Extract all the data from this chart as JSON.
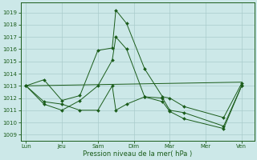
{
  "bg_color": "#cce8e8",
  "grid_color": "#aacccc",
  "line_color": "#1a5c1a",
  "marker_color": "#1a5c1a",
  "xlabel": "Pression niveau de la mer( hPa )",
  "ylim": [
    1008.5,
    1019.8
  ],
  "yticks": [
    1009,
    1010,
    1011,
    1012,
    1013,
    1014,
    1015,
    1016,
    1017,
    1018,
    1019
  ],
  "xtick_labels": [
    "Lun",
    "Jeu",
    "Sam",
    "Dim",
    "Mar",
    "Mer",
    "Ven"
  ],
  "xtick_positions": [
    0,
    1,
    2,
    3,
    4,
    5,
    6
  ],
  "series": [
    {
      "x": [
        0,
        0.5,
        1.0,
        1.5,
        2.0,
        2.4,
        2.5,
        2.8,
        3.3,
        3.8,
        4.0,
        4.4,
        5.5,
        6.0
      ],
      "y": [
        1013.0,
        1013.5,
        1011.8,
        1012.2,
        1015.9,
        1016.1,
        1019.2,
        1018.1,
        1014.4,
        1012.1,
        1012.0,
        1011.3,
        1010.4,
        1013.2
      ]
    },
    {
      "x": [
        0,
        0.5,
        1.0,
        1.5,
        2.0,
        2.4,
        2.5,
        2.8,
        3.3,
        3.8,
        4.0,
        4.4,
        5.5,
        6.0
      ],
      "y": [
        1013.0,
        1011.5,
        1011.0,
        1011.8,
        1013.0,
        1015.1,
        1017.0,
        1016.0,
        1012.1,
        1012.0,
        1011.0,
        1010.8,
        1009.7,
        1013.0
      ]
    },
    {
      "x": [
        0,
        0.5,
        1.0,
        1.5,
        2.0,
        2.4,
        2.5,
        2.8,
        3.3,
        3.8,
        4.0,
        4.4,
        5.5,
        6.0
      ],
      "y": [
        1013.0,
        1011.7,
        1011.5,
        1011.0,
        1011.0,
        1013.0,
        1011.0,
        1011.5,
        1012.1,
        1011.7,
        1010.9,
        1010.3,
        1009.5,
        1013.0
      ]
    },
    {
      "x": [
        0,
        6.0
      ],
      "y": [
        1013.0,
        1013.3
      ]
    }
  ],
  "xlim": [
    -0.15,
    6.35
  ]
}
